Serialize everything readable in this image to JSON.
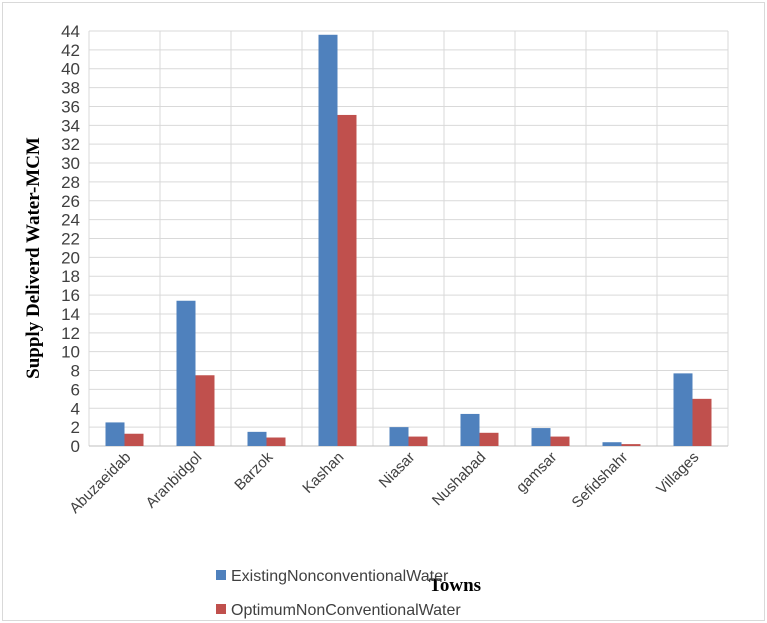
{
  "chart_data": {
    "type": "bar",
    "title": "",
    "xlabel": "Towns",
    "ylabel": "Supply Deliverd Water-MCM",
    "ylim": [
      0,
      44
    ],
    "ytick_step": 2,
    "yticks": [
      "0",
      "2",
      "4",
      "6",
      "8",
      "10",
      "12",
      "14",
      "16",
      "18",
      "20",
      "22",
      "24",
      "26",
      "28",
      "30",
      "32",
      "34",
      "36",
      "38",
      "40",
      "42",
      "44"
    ],
    "grid": true,
    "legend_position": "bottom-left",
    "categories": [
      "Abuzaeidab",
      "Aranbidgol",
      "Barzok",
      "Kashan",
      "Niasar",
      "Nushabad",
      "gamsar",
      "Sefidshahr",
      "Villages"
    ],
    "series": [
      {
        "name": "ExistingNonconventionalWater",
        "color": "#4f81bd",
        "values": [
          2.5,
          15.4,
          1.5,
          43.6,
          2.0,
          3.4,
          1.9,
          0.4,
          7.7
        ]
      },
      {
        "name": "OptimumNonConventionalWater",
        "color": "#c0504d",
        "values": [
          1.3,
          7.5,
          0.9,
          35.1,
          1.0,
          1.4,
          1.0,
          0.2,
          5.0
        ]
      }
    ]
  }
}
